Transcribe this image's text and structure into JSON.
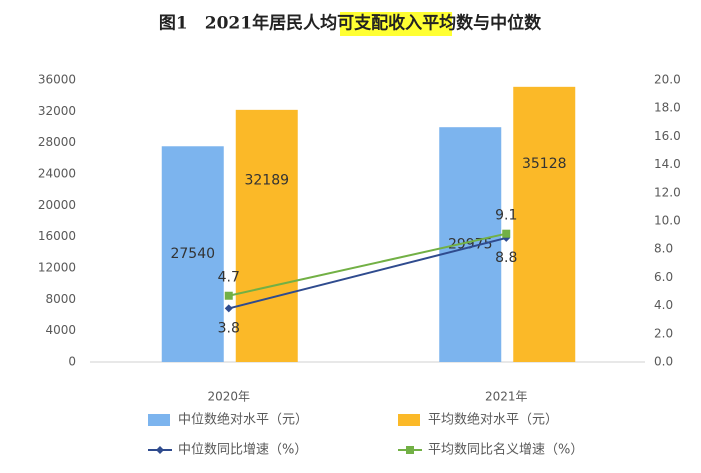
{
  "chart_data": {
    "type": "bar",
    "title": "图1　2021年居民人均可支配收入平均数与中位数",
    "categories": [
      "2020年",
      "2021年"
    ],
    "series": [
      {
        "name": "中位数绝对水平（元）",
        "type": "bar",
        "color": "#7cb4ee",
        "values": [
          27540,
          29975
        ]
      },
      {
        "name": "平均数绝对水平（元）",
        "type": "bar",
        "color": "#fbb928",
        "values": [
          32189,
          35128
        ]
      },
      {
        "name": "中位数同比增速（%）",
        "type": "line",
        "axis": "y2",
        "marker": "diamond",
        "color": "#2f4b8e",
        "values": [
          3.8,
          8.8
        ]
      },
      {
        "name": "平均数同比名义增速（%）",
        "type": "line",
        "axis": "y2",
        "marker": "square",
        "color": "#72b045",
        "values": [
          4.7,
          9.1
        ]
      }
    ],
    "ylim": [
      0,
      36000
    ],
    "yticks": [
      0,
      4000,
      8000,
      12000,
      16000,
      20000,
      24000,
      28000,
      32000,
      36000
    ],
    "y2lim": [
      0,
      20
    ],
    "y2ticks": [
      {
        "value": 0,
        "label": "0.0"
      },
      {
        "value": 2,
        "label": "2.0"
      },
      {
        "value": 4,
        "label": "4.0"
      },
      {
        "value": 6,
        "label": "6.0"
      },
      {
        "value": 8,
        "label": "8.0"
      },
      {
        "value": 10,
        "label": "10.0"
      },
      {
        "value": 12,
        "label": "12.0"
      },
      {
        "value": 14,
        "label": "14.0"
      },
      {
        "value": 16,
        "label": "16.0"
      },
      {
        "value": 18,
        "label": "18.0"
      },
      {
        "value": 20,
        "label": "20.0"
      }
    ],
    "grid": false,
    "legend": "bottom"
  }
}
